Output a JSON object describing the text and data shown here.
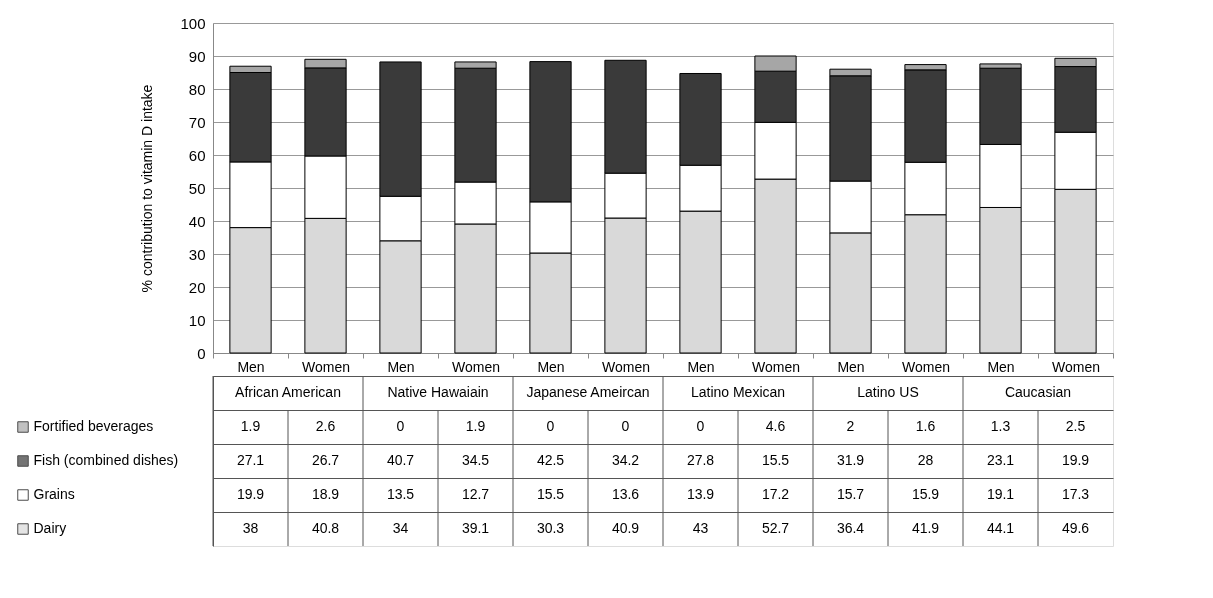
{
  "chart_data": {
    "type": "bar",
    "stacked": true,
    "ylabel": "% contribution to vitamin D intake",
    "categories": [
      "Men",
      "Women",
      "Men",
      "Women",
      "Men",
      "Women",
      "Men",
      "Women",
      "Men",
      "Women",
      "Men",
      "Women"
    ],
    "annotations": [
      "African American",
      "Native Hawaiain",
      "Japanese Ameircan",
      "Latino Mexican",
      "Latino US",
      "Caucasian"
    ],
    "series": [
      {
        "name": "Dairy",
        "color": "#d9d9d9",
        "values": [
          38,
          40.8,
          34,
          39.1,
          30.3,
          40.9,
          43,
          52.7,
          36.4,
          41.9,
          44.1,
          49.6
        ]
      },
      {
        "name": "Grains",
        "color": "#ffffff",
        "values": [
          19.9,
          18.9,
          13.5,
          12.7,
          15.5,
          13.6,
          13.9,
          17.2,
          15.7,
          15.9,
          19.1,
          17.3
        ]
      },
      {
        "name": "Fish (combined dishes)",
        "color": "#3a3a3a",
        "values": [
          27.1,
          26.7,
          40.7,
          34.5,
          42.5,
          34.2,
          27.8,
          15.5,
          31.9,
          28,
          23.1,
          19.9
        ]
      },
      {
        "name": "Fortified beverages",
        "color": "#a6a6a6",
        "values": [
          1.9,
          2.6,
          0,
          1.9,
          0,
          0,
          0,
          4.6,
          2,
          1.6,
          1.3,
          2.5
        ]
      }
    ],
    "ylim": [
      0,
      100
    ],
    "yticks": [
      0,
      10,
      20,
      30,
      40,
      50,
      60,
      70,
      80,
      90,
      100
    ],
    "grid": "y",
    "legend": "bottom left",
    "data_labels": true
  }
}
